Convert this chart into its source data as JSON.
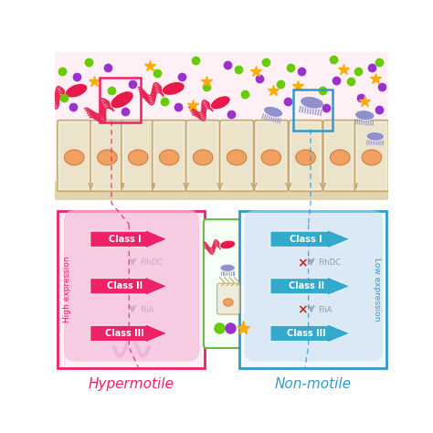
{
  "bg_color": "#ffffff",
  "intestine_bg": "#fef5f5",
  "villi_bg": "#f0ead8",
  "villi_outline": "#c8a870",
  "villi_inner": "#e8dfc0",
  "nucleus_color": "#f0a060",
  "nucleus_outline": "#d08040",
  "ehec_color": "#e8194a",
  "ehec_nonmotile_color": "#9090cc",
  "green_dot": "#66cc00",
  "purple_dot": "#9933cc",
  "yellow_star": "#ffaa00",
  "left_box_border": "#ee2266",
  "left_box_bg": "#fff0f5",
  "left_capsule_bg": "#f5c0dd",
  "left_arrow_color": "#ee2266",
  "left_label_color": "#ee2266",
  "right_box_border": "#3399cc",
  "right_box_bg": "#f0f8ff",
  "right_capsule_bg": "#c8dcf0",
  "right_arrow_color": "#33aacc",
  "right_label_color": "#3399cc",
  "legend_box_border": "#66bb44",
  "legend_box_bg": "#f5fff5",
  "gray_arrow": "#777777",
  "red_x": "#cc2222",
  "hypermotile_label": "Hypermotile",
  "nonmotile_label": "Non-motile",
  "high_expression_label": "High expression",
  "low_expression_label": "Low expression",
  "class_labels": [
    "Class I",
    "Class II",
    "Class III"
  ],
  "connector_labels": [
    "FlhDC",
    "FliA"
  ]
}
